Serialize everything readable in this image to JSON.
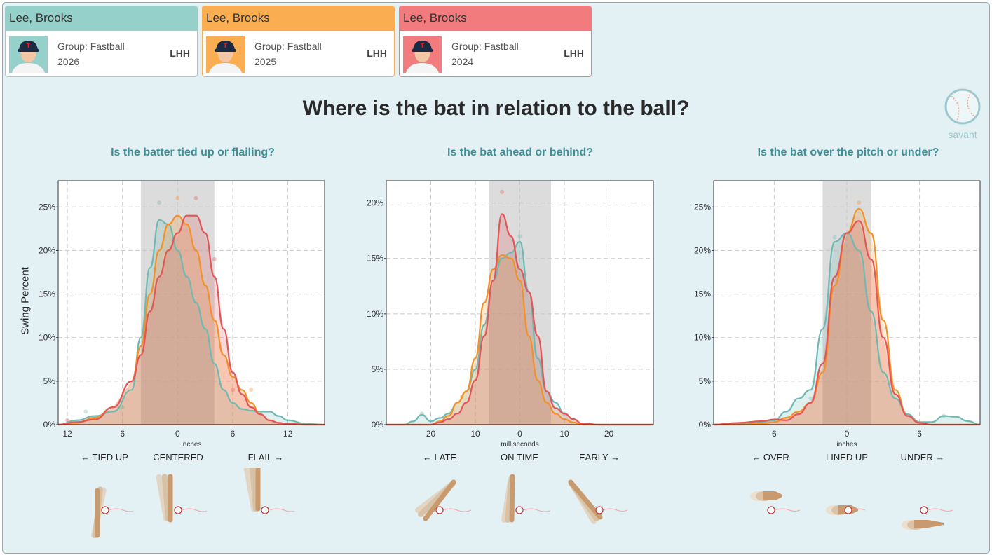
{
  "players": [
    {
      "name": "Lee, Brooks",
      "group": "Group: Fastball",
      "year": "2026",
      "hand": "LHH",
      "color": "#95d0cb"
    },
    {
      "name": "Lee, Brooks",
      "group": "Group: Fastball",
      "year": "2025",
      "hand": "LHH",
      "color": "#fbad52"
    },
    {
      "name": "Lee, Brooks",
      "group": "Group: Fastball",
      "year": "2024",
      "hand": "LHH",
      "color": "#f27b7d"
    }
  ],
  "title": "Where is the bat in relation to the ball?",
  "brand": "savant",
  "ylabel": "Swing Percent",
  "series_colors": [
    "#6fb9b2",
    "#f49025",
    "#e55557"
  ],
  "chart_data": [
    {
      "type": "area",
      "title": "Is the batter tied up or flailing?",
      "xlabel": "inches",
      "xlim": [
        13,
        -16
      ],
      "ylim": [
        0,
        28
      ],
      "xticks": [
        12,
        6,
        0,
        -6,
        -12
      ],
      "xtick_labels": [
        "12",
        "6",
        "0",
        "6",
        "12"
      ],
      "yticks": [
        0,
        5,
        10,
        15,
        20,
        25
      ],
      "ytick_labels": [
        "0%",
        "5%",
        "10%",
        "15%",
        "20%",
        "25%"
      ],
      "grid": true,
      "band": [
        4,
        -4
      ],
      "directions": [
        "← TIED UP",
        "CENTERED",
        "FLAIL →"
      ],
      "series": [
        {
          "name": "2026",
          "x": [
            13,
            11,
            9,
            7,
            5,
            4,
            3,
            2,
            1,
            0,
            -1,
            -2,
            -3,
            -4,
            -5,
            -6,
            -7,
            -8,
            -9,
            -10,
            -11,
            -12,
            -14,
            -16
          ],
          "y": [
            0,
            0.5,
            1.0,
            1.5,
            4,
            10,
            18,
            23.5,
            23,
            20,
            17,
            14,
            11,
            7,
            4,
            2.5,
            1.8,
            1.6,
            1.5,
            1.5,
            1.0,
            0.5,
            0.1,
            0
          ]
        },
        {
          "name": "2025",
          "x": [
            13,
            11,
            9,
            7,
            5,
            4,
            3,
            2,
            1,
            0,
            -1,
            -2,
            -3,
            -4,
            -5,
            -6,
            -7,
            -8,
            -9,
            -10,
            -11,
            -12,
            -14,
            -16
          ],
          "y": [
            0,
            0.2,
            0.8,
            2,
            5,
            9,
            15,
            20,
            23,
            24,
            23,
            20,
            16,
            12,
            8,
            5.5,
            4,
            2.5,
            1.2,
            0.5,
            0.2,
            0.1,
            0,
            0
          ]
        },
        {
          "name": "2024",
          "x": [
            13,
            11,
            9,
            7,
            5,
            4,
            3,
            2,
            1,
            0,
            -1,
            -2,
            -3,
            -4,
            -5,
            -6,
            -7,
            -8,
            -9,
            -10,
            -11,
            -12,
            -14,
            -16
          ],
          "y": [
            0,
            0.3,
            0.6,
            2,
            5,
            8,
            13,
            17,
            20,
            22,
            24,
            24,
            22,
            17,
            11,
            6,
            3.5,
            2,
            1.2,
            0.5,
            0.2,
            0.1,
            0,
            0
          ]
        }
      ],
      "points": [
        {
          "s": 0,
          "x": 2,
          "y": 25.5
        },
        {
          "s": 1,
          "x": 0,
          "y": 26
        },
        {
          "s": 2,
          "x": -2,
          "y": 26
        },
        {
          "s": 2,
          "x": -4,
          "y": 19
        },
        {
          "s": 1,
          "x": -8,
          "y": 4
        },
        {
          "s": 2,
          "x": -6,
          "y": 4
        },
        {
          "s": 0,
          "x": 10,
          "y": 1.5
        },
        {
          "s": 2,
          "x": 12,
          "y": 0.5
        },
        {
          "s": 0,
          "x": 6,
          "y": 2
        }
      ]
    },
    {
      "type": "area",
      "title": "Is the bat ahead or behind?",
      "xlabel": "milliseconds",
      "xlim": [
        30,
        -30
      ],
      "ylim": [
        0,
        22
      ],
      "xticks": [
        20,
        10,
        0,
        -10,
        -20
      ],
      "xtick_labels": [
        "20",
        "10",
        "0",
        "10",
        "20"
      ],
      "yticks": [
        0,
        5,
        10,
        15,
        20
      ],
      "ytick_labels": [
        "0%",
        "5%",
        "10%",
        "15%",
        "20%"
      ],
      "grid": true,
      "band": [
        7,
        -7
      ],
      "directions": [
        "← LATE",
        "ON TIME",
        "EARLY →"
      ],
      "series": [
        {
          "name": "2026",
          "x": [
            30,
            26,
            24,
            22,
            20,
            18,
            16,
            14,
            12,
            10,
            8,
            6,
            4,
            2,
            0,
            -2,
            -4,
            -6,
            -8,
            -10,
            -12,
            -14,
            -18,
            -30
          ],
          "y": [
            0,
            0,
            0.3,
            0.9,
            0.3,
            0.6,
            1,
            2,
            3,
            5,
            9,
            13,
            15,
            15.5,
            16.5,
            12,
            6,
            3,
            2,
            1,
            0.5,
            0.1,
            0,
            0
          ]
        },
        {
          "name": "2025",
          "x": [
            30,
            26,
            24,
            22,
            20,
            18,
            16,
            14,
            12,
            10,
            8,
            6,
            4,
            2,
            0,
            -2,
            -4,
            -6,
            -8,
            -10,
            -12,
            -14,
            -18,
            -30
          ],
          "y": [
            0,
            0,
            0,
            0,
            0,
            0.3,
            0.8,
            2,
            3,
            6,
            11,
            14,
            15.3,
            15,
            13,
            8,
            4,
            2,
            1,
            0.5,
            0.2,
            0,
            0,
            0
          ]
        },
        {
          "name": "2024",
          "x": [
            30,
            26,
            24,
            22,
            20,
            18,
            16,
            14,
            12,
            10,
            8,
            6,
            4,
            2,
            0,
            -2,
            -4,
            -6,
            -8,
            -10,
            -12,
            -14,
            -18,
            -30
          ],
          "y": [
            0,
            0,
            0,
            0,
            0,
            0.2,
            0.5,
            1,
            2,
            4,
            8,
            13,
            19,
            17,
            14,
            12,
            8,
            3,
            1.5,
            1,
            0.5,
            0.1,
            0,
            0
          ]
        }
      ],
      "points": [
        {
          "s": 2,
          "x": 4,
          "y": 21
        },
        {
          "s": 0,
          "x": 0,
          "y": 17
        },
        {
          "s": 0,
          "x": 22,
          "y": 1
        },
        {
          "s": 1,
          "x": 13,
          "y": 2.5
        },
        {
          "s": 0,
          "x": -10,
          "y": 1
        }
      ]
    },
    {
      "type": "area",
      "title": "Is the bat over the pitch or under?",
      "xlabel": "inches",
      "xlim": [
        11,
        -11
      ],
      "ylim": [
        0,
        28
      ],
      "xticks": [
        6,
        0,
        -6
      ],
      "xtick_labels": [
        "6",
        "0",
        "6"
      ],
      "yticks": [
        0,
        5,
        10,
        15,
        20,
        25
      ],
      "ytick_labels": [
        "0%",
        "5%",
        "10%",
        "15%",
        "20%",
        "25%"
      ],
      "grid": true,
      "band": [
        2,
        -2
      ],
      "directions": [
        "← OVER",
        "LINED UP",
        "UNDER →"
      ],
      "series": [
        {
          "name": "2026",
          "x": [
            11,
            9,
            7,
            6,
            5,
            4,
            3,
            2,
            1,
            0,
            -1,
            -2,
            -3,
            -4,
            -5,
            -6,
            -7,
            -8,
            -9,
            -10,
            -11
          ],
          "y": [
            0,
            0.1,
            0.3,
            0.5,
            1.5,
            3,
            4,
            11,
            21,
            22,
            20,
            13,
            6,
            3,
            1.2,
            0.3,
            0.3,
            1,
            0.9,
            0.4,
            0
          ]
        },
        {
          "name": "2025",
          "x": [
            11,
            9,
            7,
            6,
            5,
            4,
            3,
            2,
            1,
            0,
            -1,
            -2,
            -3,
            -4,
            -5,
            -6,
            -7,
            -8,
            -9,
            -10,
            -11
          ],
          "y": [
            0,
            0,
            0.1,
            0.3,
            0.8,
            1.5,
            2.5,
            6,
            16,
            22,
            24.8,
            22,
            12,
            4,
            1,
            0.2,
            0,
            0,
            0,
            0,
            0
          ]
        },
        {
          "name": "2024",
          "x": [
            11,
            9,
            7,
            6,
            5,
            4,
            3,
            2,
            1,
            0,
            -1,
            -2,
            -3,
            -4,
            -5,
            -6,
            -7,
            -8,
            -9,
            -10,
            -11
          ],
          "y": [
            0,
            0.2,
            0.4,
            0.6,
            0.5,
            1.2,
            2.5,
            7,
            17,
            22,
            23.4,
            19,
            10,
            3.5,
            1,
            0.2,
            0,
            0,
            0,
            0,
            0
          ]
        }
      ],
      "points": [
        {
          "s": 1,
          "x": -1,
          "y": 25.5
        },
        {
          "s": 0,
          "x": 1,
          "y": 21.5
        },
        {
          "s": 0,
          "x": 3,
          "y": 3
        },
        {
          "s": 0,
          "x": -8,
          "y": 1
        }
      ]
    }
  ]
}
